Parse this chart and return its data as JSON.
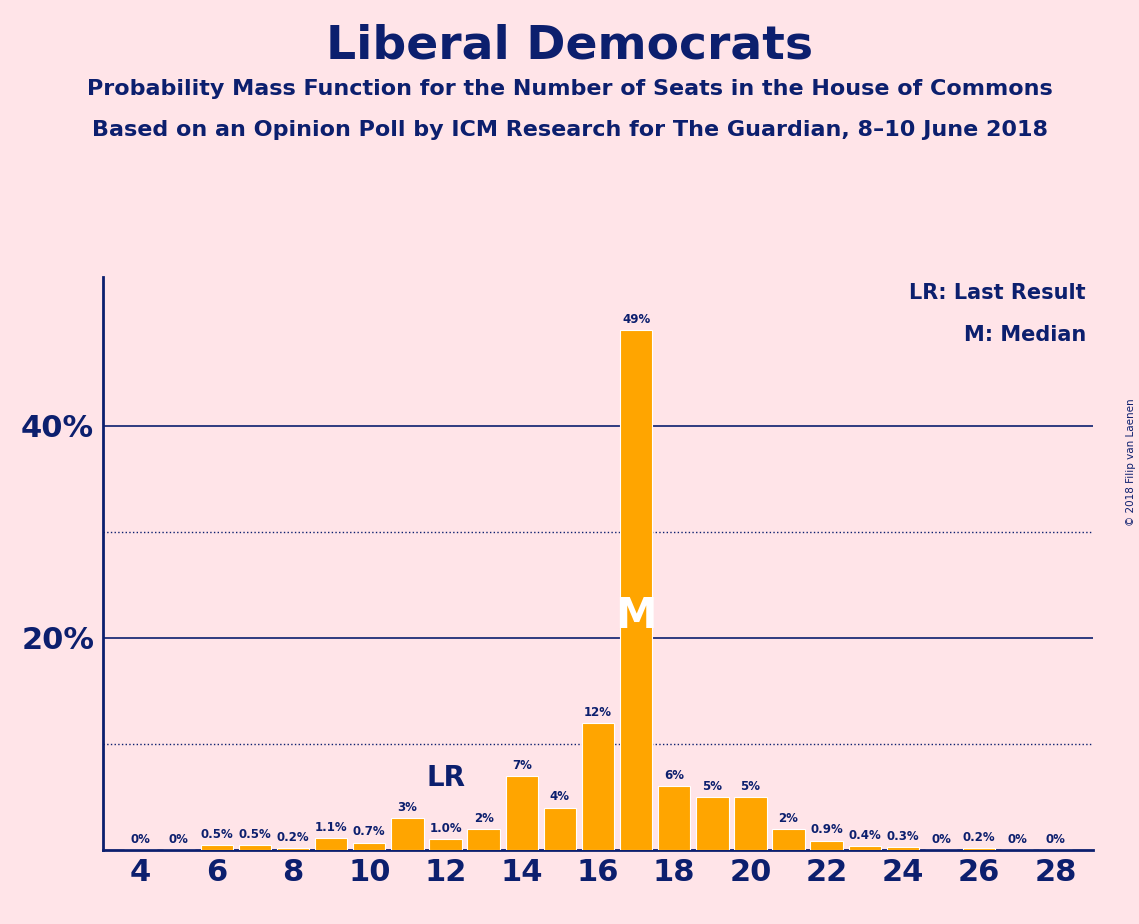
{
  "title": "Liberal Democrats",
  "subtitle1": "Probability Mass Function for the Number of Seats in the House of Commons",
  "subtitle2": "Based on an Opinion Poll by ICM Research for The Guardian, 8–10 June 2018",
  "copyright": "© 2018 Filip van Laenen",
  "seats": [
    4,
    5,
    6,
    7,
    8,
    9,
    10,
    11,
    12,
    13,
    14,
    15,
    16,
    17,
    18,
    19,
    20,
    21,
    22,
    23,
    24,
    25,
    26,
    27,
    28
  ],
  "probabilities": [
    0.0,
    0.0,
    0.5,
    0.5,
    0.2,
    1.1,
    0.7,
    3.0,
    1.0,
    2.0,
    7.0,
    4.0,
    12.0,
    49.0,
    6.0,
    5.0,
    5.0,
    2.0,
    0.9,
    0.4,
    0.3,
    0.0,
    0.2,
    0.0,
    0.0
  ],
  "labels": [
    "0%",
    "0%",
    "0.5%",
    "0.5%",
    "0.2%",
    "1.1%",
    "0.7%",
    "3%",
    "1.0%",
    "2%",
    "7%",
    "4%",
    "12%",
    "49%",
    "6%",
    "5%",
    "5%",
    "2%",
    "0.9%",
    "0.4%",
    "0.3%",
    "0%",
    "0.2%",
    "0%",
    "0%"
  ],
  "bar_color": "#FFA500",
  "background_color": "#FFE4E8",
  "text_color": "#0C1F6E",
  "bar_edge_color": "#FFFFFF",
  "last_result_seat": 12,
  "median_seat": 17,
  "legend_lr": "LR: Last Result",
  "legend_m": "M: Median",
  "solid_gridlines": [
    20,
    40
  ],
  "dotted_gridlines": [
    10,
    30
  ],
  "xlim": [
    3,
    29
  ],
  "ylim": [
    0,
    54
  ],
  "xticks": [
    4,
    6,
    8,
    10,
    12,
    14,
    16,
    18,
    20,
    22,
    24,
    26,
    28
  ]
}
